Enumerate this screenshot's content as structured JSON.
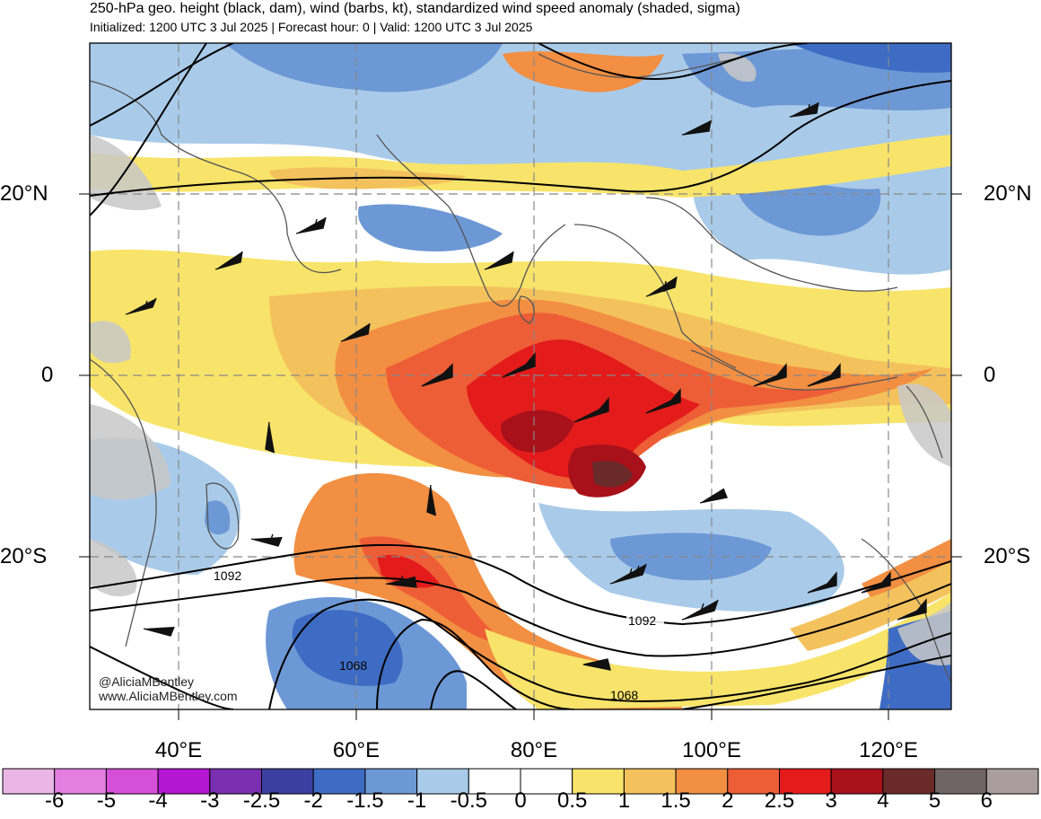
{
  "header": {
    "title": "250-hPa geo. height (black, dam), wind (barbs, kt), standardized wind speed anomaly (shaded, sigma)",
    "subtitle": "Initialized: 1200 UTC 3 Jul 2025 | Forecast hour: 0 | Valid: 1200 UTC 3 Jul 2025"
  },
  "map": {
    "lat_labels": [
      "20°N",
      "0",
      "20°S"
    ],
    "lon_labels": [
      "40°E",
      "60°E",
      "80°E",
      "100°E",
      "120°E"
    ],
    "contour_labels": [
      "1092",
      "1068",
      "1092",
      "1068"
    ],
    "credits": [
      "@AliciaMBentley",
      "www.AliciaMBentley.com"
    ]
  },
  "colorbar": {
    "labels": [
      "-6",
      "-5",
      "-4",
      "-3",
      "-2.5",
      "-2",
      "-1.5",
      "-1",
      "-0.5",
      "0",
      "0.5",
      "1",
      "1.5",
      "2",
      "2.5",
      "3",
      "4",
      "5",
      "6"
    ],
    "colors": [
      "#eab6e6",
      "#e47fe0",
      "#d64fd8",
      "#b516d2",
      "#7a2fb0",
      "#3b3fa0",
      "#3e6cc4",
      "#6d98d6",
      "#a9cbe9",
      "#ffffff",
      "#ffffff",
      "#f8e46a",
      "#f4c25c",
      "#f28f42",
      "#ee5e36",
      "#e31b1b",
      "#a8101a",
      "#6b2a2a",
      "#6f6565",
      "#a99d9d"
    ]
  }
}
